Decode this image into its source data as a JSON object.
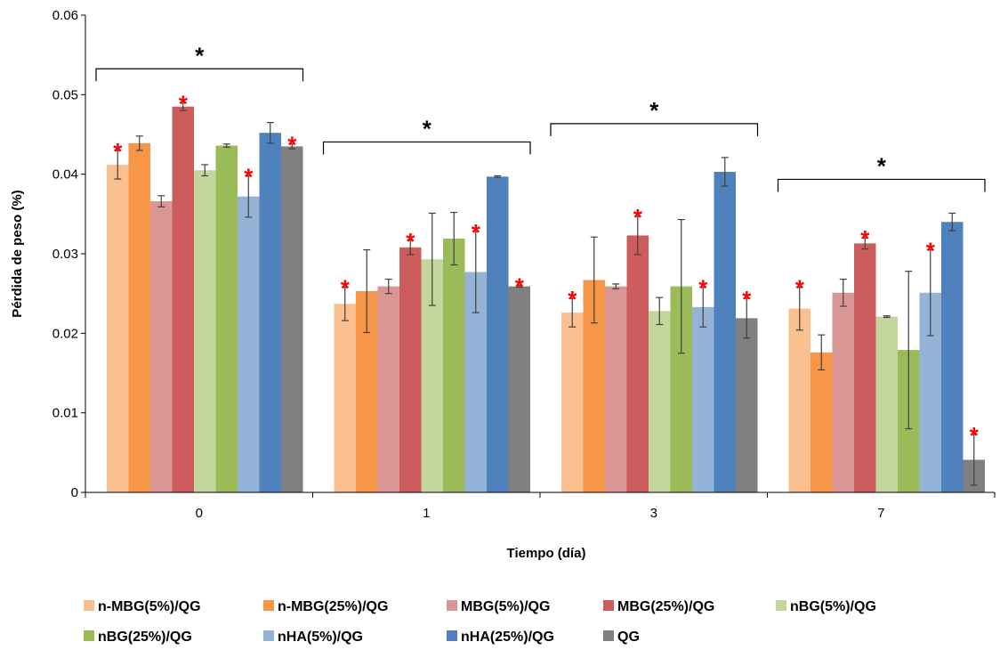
{
  "chart_data": {
    "type": "bar",
    "title": "",
    "xlabel": "Tiempo (día)",
    "ylabel": "Pérdida de peso (%)",
    "ylim": [
      0,
      0.06
    ],
    "yticks": [
      "0",
      "0.01",
      "0.02",
      "0.03",
      "0.04",
      "0.05",
      "0.06"
    ],
    "categories": [
      "0",
      "1",
      "3",
      "7"
    ],
    "legend_position": "bottom",
    "series": [
      {
        "name": "n-MBG(5%)/QG",
        "color": "#fac090",
        "values": [
          0.0412,
          0.0237,
          0.0226,
          0.0231
        ],
        "errors": [
          0.0018,
          0.0021,
          0.0018,
          0.0027
        ],
        "significant": [
          true,
          true,
          true,
          true
        ]
      },
      {
        "name": "n-MBG(25%)/QG",
        "color": "#f79646",
        "values": [
          0.0439,
          0.0253,
          0.0267,
          0.0176
        ],
        "errors": [
          0.0009,
          0.0052,
          0.0054,
          0.0022
        ],
        "significant": [
          false,
          false,
          false,
          false
        ]
      },
      {
        "name": "MBG(5%)/QG",
        "color": "#d99694",
        "values": [
          0.0366,
          0.0259,
          0.0259,
          0.0251
        ],
        "errors": [
          0.0007,
          0.0009,
          0.0003,
          0.0017
        ],
        "significant": [
          false,
          false,
          false,
          false
        ]
      },
      {
        "name": "MBG(25%)/QG",
        "color": "#cd5c5c",
        "values": [
          0.0485,
          0.0308,
          0.0323,
          0.0313
        ],
        "errors": [
          0.0005,
          0.0009,
          0.0024,
          0.0007
        ],
        "significant": [
          true,
          true,
          true,
          true
        ]
      },
      {
        "name": "nBG(5%)/QG",
        "color": "#c3d69b",
        "values": [
          0.0405,
          0.0293,
          0.0228,
          0.0221
        ],
        "errors": [
          0.0007,
          0.0058,
          0.0017,
          0.0001
        ],
        "significant": [
          false,
          false,
          false,
          false
        ]
      },
      {
        "name": "nBG(25%)/QG",
        "color": "#9bbb59",
        "values": [
          0.0436,
          0.0319,
          0.0259,
          0.0179
        ],
        "errors": [
          0.0002,
          0.0033,
          0.0084,
          0.0099
        ],
        "significant": [
          false,
          false,
          false,
          false
        ]
      },
      {
        "name": "nHA(5%)/QG",
        "color": "#95b3d7",
        "values": [
          0.0372,
          0.0277,
          0.0233,
          0.0251
        ],
        "errors": [
          0.0026,
          0.0051,
          0.0025,
          0.0054
        ],
        "significant": [
          true,
          true,
          true,
          true
        ]
      },
      {
        "name": "nHA(25%)/QG",
        "color": "#4f81bd",
        "values": [
          0.0452,
          0.0397,
          0.0403,
          0.034
        ],
        "errors": [
          0.0013,
          0.0001,
          0.0018,
          0.0011
        ],
        "significant": [
          false,
          false,
          false,
          false
        ]
      },
      {
        "name": "QG",
        "color": "#808080",
        "values": [
          0.0435,
          0.0259,
          0.0219,
          0.0041
        ],
        "errors": [
          0.0003,
          0.0001,
          0.0025,
          0.0032
        ],
        "significant": [
          true,
          true,
          true,
          true
        ]
      }
    ],
    "group_significance": [
      true,
      true,
      true,
      true
    ],
    "significance_symbol": "*",
    "grid": false
  }
}
